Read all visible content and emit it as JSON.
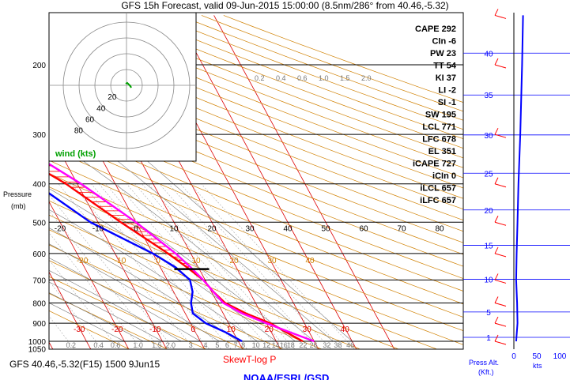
{
  "header": {
    "title": "GFS 15h Forecast, valid 09-Jun-2015 15:00:00 (8.5nm/286° from 40.46,-5.32)"
  },
  "footer": {
    "run_info": "GFS 40.46,-5.32(F15) 1500 9Jun15",
    "diagram_name": "SkewT-log P",
    "credit": "NOAA/ESRL/GSD"
  },
  "hodograph": {
    "label": "wind (kts)",
    "ring_labels": [
      "20",
      "40",
      "60",
      "80"
    ],
    "label_color": "#00a000"
  },
  "indices": [
    {
      "key": "CAPE",
      "value": "292"
    },
    {
      "key": "CIn",
      "value": "-6"
    },
    {
      "key": "PW",
      "value": "23"
    },
    {
      "key": "TT",
      "value": "54"
    },
    {
      "key": "KI",
      "value": "37"
    },
    {
      "key": "LI",
      "value": "-2"
    },
    {
      "key": "SI",
      "value": "-1"
    },
    {
      "key": "SW",
      "value": "195"
    },
    {
      "key": "LCL",
      "value": "771"
    },
    {
      "key": "LFC",
      "value": "678"
    },
    {
      "key": "EL",
      "value": "351"
    },
    {
      "key": "iCAPE",
      "value": "727"
    },
    {
      "key": "iCIn",
      "value": "0"
    },
    {
      "key": "iLCL",
      "value": "657"
    },
    {
      "key": "iLFC",
      "value": "657"
    }
  ],
  "side_axes": {
    "pressure_label": "Pressure",
    "pressure_unit": "(mb)",
    "height_label": "Press Alt.",
    "height_unit": "(Kft.)",
    "wind_unit": "kts"
  },
  "chart_data": {
    "type": "line",
    "diagram": "skew-T log-P",
    "pressure_levels_mb": [
      200,
      300,
      400,
      500,
      600,
      700,
      800,
      900,
      1000,
      1050
    ],
    "pressure_tick_labels": [
      "200",
      "300",
      "400",
      "500",
      "600",
      "700",
      "800",
      "900",
      "1000",
      "1050"
    ],
    "temperature_ticks_upper_c": [
      -20,
      -10,
      0,
      10,
      20,
      30,
      40,
      50,
      60,
      70,
      80
    ],
    "temperature_ticks_lower_c": [
      -40,
      -30,
      -20,
      -10,
      0,
      10,
      20,
      30,
      40
    ],
    "temperature_ticks_mid_c": [
      -20,
      -10,
      0,
      10,
      20,
      30,
      40
    ],
    "mixing_ratio_labels": [
      "0.1",
      "0.2",
      "0.4",
      "0.6",
      "1.0",
      "1.5",
      "2.0",
      "3",
      "4",
      "5",
      "6",
      "7",
      "8",
      "10",
      "12",
      "14",
      "16",
      "18",
      "22",
      "26",
      "32",
      "38",
      "46"
    ],
    "height_kft_ticks": [
      1,
      5,
      10,
      15,
      20,
      25,
      30,
      35,
      40
    ],
    "wind_speed_ticks_kts": [
      0,
      50,
      100
    ],
    "lcl_marker_mb": 657,
    "series": [
      {
        "name": "Temperature",
        "color": "#ff0000",
        "points": [
          [
            1000,
            27
          ],
          [
            950,
            24
          ],
          [
            900,
            21
          ],
          [
            850,
            16
          ],
          [
            800,
            12
          ],
          [
            750,
            10.5
          ],
          [
            700,
            9.5
          ],
          [
            650,
            7
          ],
          [
            600,
            4
          ],
          [
            500,
            -4
          ],
          [
            400,
            -13
          ],
          [
            300,
            -28
          ],
          [
            250,
            -39
          ],
          [
            200,
            -50
          ],
          [
            150,
            -56
          ],
          [
            100,
            -55
          ]
        ]
      },
      {
        "name": "Dew point",
        "color": "#0000ff",
        "points": [
          [
            1000,
            11
          ],
          [
            950,
            8
          ],
          [
            900,
            4
          ],
          [
            850,
            2
          ],
          [
            800,
            3
          ],
          [
            750,
            5
          ],
          [
            700,
            6
          ],
          [
            650,
            4
          ],
          [
            600,
            0
          ],
          [
            500,
            -12
          ],
          [
            400,
            -21
          ],
          [
            300,
            -36
          ],
          [
            250,
            -44
          ],
          [
            200,
            -54
          ],
          [
            150,
            -65
          ],
          [
            100,
            -75
          ]
        ]
      },
      {
        "name": "Parcel",
        "color": "#ff00ff",
        "points": [
          [
            1000,
            30
          ],
          [
            950,
            25
          ],
          [
            900,
            20
          ],
          [
            850,
            15
          ],
          [
            800,
            11.5
          ],
          [
            750,
            10.5
          ],
          [
            700,
            9.5
          ],
          [
            650,
            8
          ],
          [
            600,
            6
          ],
          [
            500,
            0
          ],
          [
            400,
            -9
          ],
          [
            300,
            -23
          ],
          [
            250,
            -33
          ],
          [
            200,
            -46
          ],
          [
            150,
            -58
          ]
        ]
      }
    ],
    "hodograph_uv_kts": [
      [
        -1,
        2
      ],
      [
        1,
        3
      ],
      [
        3,
        1
      ],
      [
        5,
        -1
      ],
      [
        6,
        -3
      ],
      [
        4,
        0
      ],
      [
        2,
        2
      ]
    ],
    "wind_profile_kts": [
      [
        1000,
        5
      ],
      [
        900,
        8
      ],
      [
        800,
        7
      ],
      [
        700,
        5
      ],
      [
        600,
        6
      ],
      [
        500,
        8
      ],
      [
        400,
        10
      ],
      [
        300,
        14
      ],
      [
        200,
        18
      ],
      [
        150,
        20
      ]
    ]
  }
}
